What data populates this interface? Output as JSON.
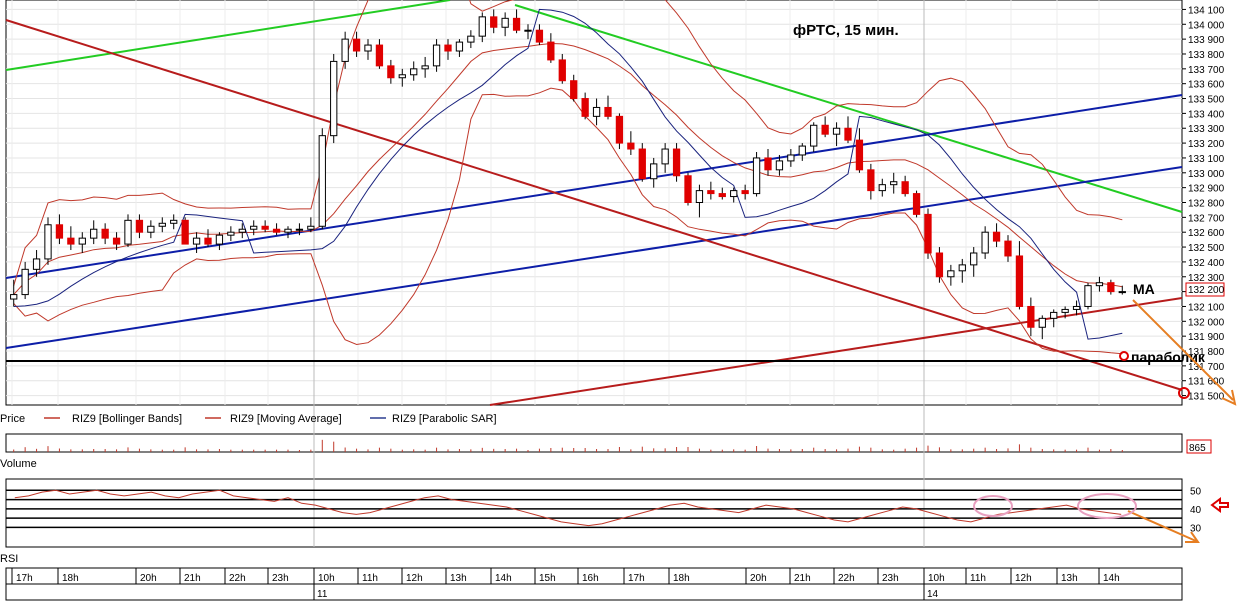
{
  "chart_data": {
    "type": "candlestick",
    "title": "фРТС,  15 мин.",
    "price_panel": {
      "label": "Price",
      "ylim": [
        131450,
        134150
      ],
      "yticks": [
        131500,
        131600,
        131700,
        131800,
        131900,
        132000,
        132100,
        132200,
        132300,
        132400,
        132500,
        132600,
        132700,
        132800,
        132900,
        133000,
        133100,
        133200,
        133300,
        133400,
        133500,
        133600,
        133700,
        133800,
        133900,
        134000,
        134100
      ],
      "ytick_labels": [
        "131 500",
        "131 600",
        "131 700",
        "131 800",
        "131 900",
        "132 000",
        "132 100",
        "132 200",
        "132 300",
        "132 400",
        "132 500",
        "132 600",
        "132 700",
        "132 800",
        "132 900",
        "133 000",
        "133 100",
        "133 200",
        "133 300",
        "133 400",
        "133 500",
        "133 600",
        "133 700",
        "133 800",
        "133 900",
        "134 000",
        "134 100"
      ],
      "last_price_label": "132 200",
      "last_price": 132200,
      "legend": [
        {
          "name": "RIZ9 [Bollinger Bands]",
          "color": "#c0392b"
        },
        {
          "name": "RIZ9 [Moving Average]",
          "color": "#c0392b"
        },
        {
          "name": "RIZ9 [Parabolic SAR]",
          "color": "#2c3e90"
        }
      ],
      "candles": [
        [
          132150,
          132280,
          132100,
          132180
        ],
        [
          132180,
          132400,
          132150,
          132350
        ],
        [
          132350,
          132480,
          132300,
          132420
        ],
        [
          132420,
          132700,
          132380,
          132650
        ],
        [
          132650,
          132720,
          132520,
          132560
        ],
        [
          132560,
          132640,
          132480,
          132520
        ],
        [
          132520,
          132600,
          132460,
          132560
        ],
        [
          132560,
          132680,
          132520,
          132620
        ],
        [
          132620,
          132660,
          132520,
          132560
        ],
        [
          132560,
          132600,
          132480,
          132520
        ],
        [
          132520,
          132720,
          132500,
          132680
        ],
        [
          132680,
          132720,
          132560,
          132600
        ],
        [
          132600,
          132680,
          132560,
          132640
        ],
        [
          132640,
          132700,
          132600,
          132660
        ],
        [
          132660,
          132720,
          132620,
          132680
        ],
        [
          132680,
          132700,
          132520,
          132520
        ],
        [
          132520,
          132600,
          132460,
          132560
        ],
        [
          132560,
          132620,
          132500,
          132520
        ],
        [
          132520,
          132600,
          132480,
          132580
        ],
        [
          132580,
          132640,
          132540,
          132600
        ],
        [
          132600,
          132660,
          132560,
          132620
        ],
        [
          132620,
          132680,
          132580,
          132640
        ],
        [
          132640,
          132680,
          132600,
          132620
        ],
        [
          132620,
          132660,
          132580,
          132600
        ],
        [
          132600,
          132640,
          132560,
          132620
        ],
        [
          132620,
          132660,
          132580,
          132620
        ],
        [
          132620,
          132700,
          132600,
          132640
        ],
        [
          132640,
          133300,
          132620,
          133250
        ],
        [
          133250,
          133800,
          133200,
          133750
        ],
        [
          133750,
          133950,
          133700,
          133900
        ],
        [
          133900,
          133950,
          133780,
          133820
        ],
        [
          133820,
          133900,
          133760,
          133860
        ],
        [
          133860,
          133900,
          133700,
          133720
        ],
        [
          133720,
          133760,
          133600,
          133640
        ],
        [
          133640,
          133700,
          133580,
          133660
        ],
        [
          133660,
          133750,
          133620,
          133700
        ],
        [
          133700,
          133780,
          133640,
          133720
        ],
        [
          133720,
          133900,
          133680,
          133860
        ],
        [
          133860,
          133900,
          133760,
          133820
        ],
        [
          133820,
          133900,
          133780,
          133880
        ],
        [
          133880,
          133960,
          133840,
          133920
        ],
        [
          133920,
          134080,
          133880,
          134050
        ],
        [
          134050,
          134100,
          133940,
          133980
        ],
        [
          133980,
          134080,
          133920,
          134040
        ],
        [
          134040,
          134100,
          133940,
          133960
        ],
        [
          133960,
          134000,
          133900,
          133960
        ],
        [
          133960,
          134000,
          133860,
          133880
        ],
        [
          133880,
          133940,
          133740,
          133760
        ],
        [
          133760,
          133800,
          133600,
          133620
        ],
        [
          133620,
          133660,
          133480,
          133500
        ],
        [
          133500,
          133540,
          133360,
          133380
        ],
        [
          133380,
          133500,
          133320,
          133440
        ],
        [
          133440,
          133520,
          133360,
          133380
        ],
        [
          133380,
          133400,
          133160,
          133200
        ],
        [
          133200,
          133280,
          133120,
          133160
        ],
        [
          133160,
          133200,
          132940,
          132960
        ],
        [
          132960,
          133100,
          132900,
          133060
        ],
        [
          133060,
          133200,
          133000,
          133160
        ],
        [
          133160,
          133200,
          132940,
          132980
        ],
        [
          132980,
          133000,
          132780,
          132800
        ],
        [
          132800,
          132920,
          132700,
          132880
        ],
        [
          132880,
          132940,
          132820,
          132860
        ],
        [
          132860,
          132900,
          132820,
          132840
        ],
        [
          132840,
          132900,
          132800,
          132880
        ],
        [
          132880,
          132920,
          132820,
          132860
        ],
        [
          132860,
          133140,
          132840,
          133100
        ],
        [
          133100,
          133160,
          132980,
          133020
        ],
        [
          133020,
          133120,
          132980,
          133080
        ],
        [
          133080,
          133160,
          133040,
          133120
        ],
        [
          133120,
          133200,
          133080,
          133180
        ],
        [
          133180,
          133340,
          133140,
          133320
        ],
        [
          133320,
          133380,
          133240,
          133260
        ],
        [
          133260,
          133340,
          133180,
          133300
        ],
        [
          133300,
          133380,
          133200,
          133220
        ],
        [
          133220,
          133300,
          133000,
          133020
        ],
        [
          133020,
          133060,
          132820,
          132880
        ],
        [
          132880,
          132960,
          132840,
          132920
        ],
        [
          132920,
          133000,
          132860,
          132940
        ],
        [
          132940,
          132980,
          132840,
          132860
        ],
        [
          132860,
          132880,
          132700,
          132720
        ],
        [
          132720,
          132760,
          132420,
          132460
        ],
        [
          132460,
          132500,
          132260,
          132300
        ],
        [
          132300,
          132380,
          132240,
          132340
        ],
        [
          132340,
          132420,
          132260,
          132380
        ],
        [
          132380,
          132500,
          132300,
          132460
        ],
        [
          132460,
          132640,
          132420,
          132600
        ],
        [
          132600,
          132660,
          132500,
          132540
        ],
        [
          132540,
          132580,
          132400,
          132440
        ],
        [
          132440,
          132540,
          132080,
          132100
        ],
        [
          132100,
          132160,
          131900,
          131960
        ],
        [
          131960,
          132040,
          131880,
          132020
        ],
        [
          132020,
          132080,
          131960,
          132060
        ],
        [
          132060,
          132100,
          132020,
          132080
        ],
        [
          132080,
          132140,
          132040,
          132100
        ],
        [
          132100,
          132260,
          132080,
          132240
        ],
        [
          132240,
          132300,
          132200,
          132260
        ],
        [
          132260,
          132280,
          132180,
          132200
        ],
        [
          132200,
          132240,
          132180,
          132200
        ]
      ],
      "candle_colors": {
        "up": "#ffffff",
        "down": "#e00000",
        "outline": "#000000"
      }
    },
    "volume_panel": {
      "label": "Volume",
      "last_value_label": "865"
    },
    "rsi_panel": {
      "label": "RSI",
      "ylim": [
        20,
        55
      ],
      "yticks": [
        30,
        40,
        50
      ],
      "ytick_labels": [
        "30",
        "40",
        "50"
      ],
      "values": [
        46,
        47,
        49,
        50,
        48,
        49,
        50,
        48,
        47,
        48,
        49,
        47,
        46,
        48,
        49,
        50,
        47,
        46,
        45,
        44,
        46,
        43,
        42,
        40,
        38,
        37,
        38,
        40,
        42,
        44,
        46,
        47,
        45,
        44,
        43,
        42,
        41,
        39,
        37,
        35,
        33,
        32,
        31,
        32,
        34,
        36,
        38,
        40,
        42,
        43,
        41,
        40,
        39,
        38,
        40,
        42,
        41,
        40,
        38,
        36,
        34,
        33,
        35,
        37,
        39,
        41,
        40,
        38,
        36,
        34,
        33,
        35,
        37,
        38,
        39,
        40,
        41,
        42,
        40,
        39,
        38,
        37
      ]
    },
    "time_axis": {
      "hours": [
        "17h",
        "18h",
        "20h",
        "21h",
        "22h",
        "23h",
        "10h",
        "11h",
        "12h",
        "13h",
        "14h",
        "15h",
        "16h",
        "17h",
        "18h",
        "20h",
        "21h",
        "22h",
        "23h",
        "10h",
        "11h",
        "12h",
        "13h",
        "14h"
      ],
      "days": [
        "11",
        "14"
      ]
    },
    "annotations": {
      "ma_label": "MA",
      "parabolic_label": "параболик"
    },
    "colors": {
      "bollinger": "#c0392b",
      "moving_average": "#c0392b",
      "parabolic": "#1a237e",
      "channel_blue": "#0d1ea8",
      "channel_green": "#22cc22",
      "channel_red": "#b71c1c",
      "forecast_arrow": "#e67e22"
    }
  }
}
